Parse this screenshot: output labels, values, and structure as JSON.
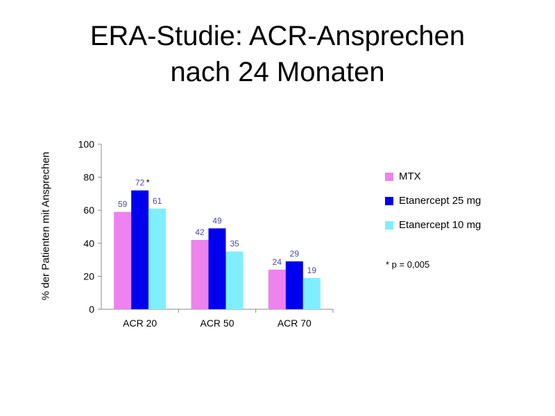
{
  "title_line1": "ERA-Studie: ACR-Ansprechen",
  "title_line2": "nach 24 Monaten",
  "footnote": "* p = 0,005",
  "chart_data": {
    "type": "bar",
    "title": "ERA-Studie: ACR-Ansprechen nach 24 Monaten",
    "ylabel": "% der Patienten mit Ansprechen",
    "xlabel": "",
    "ylim": [
      0,
      100
    ],
    "yticks": [
      0,
      20,
      40,
      60,
      80,
      100
    ],
    "categories": [
      "ACR 20",
      "ACR 50",
      "ACR 70"
    ],
    "series": [
      {
        "name": "MTX",
        "values": [
          59,
          42,
          24
        ],
        "color": "#ee82ee"
      },
      {
        "name": "Etanercept 25 mg",
        "values": [
          72,
          49,
          29
        ],
        "color": "#0000ee"
      },
      {
        "name": "Etanercept 10 mg",
        "values": [
          61,
          35,
          19
        ],
        "color": "#7fefff"
      }
    ],
    "annotations": [
      {
        "category": "ACR 20",
        "series": "Etanercept 25 mg",
        "text": "*"
      }
    ],
    "label_color": "#4a4aa8",
    "legend_position": "right",
    "grid": false
  }
}
